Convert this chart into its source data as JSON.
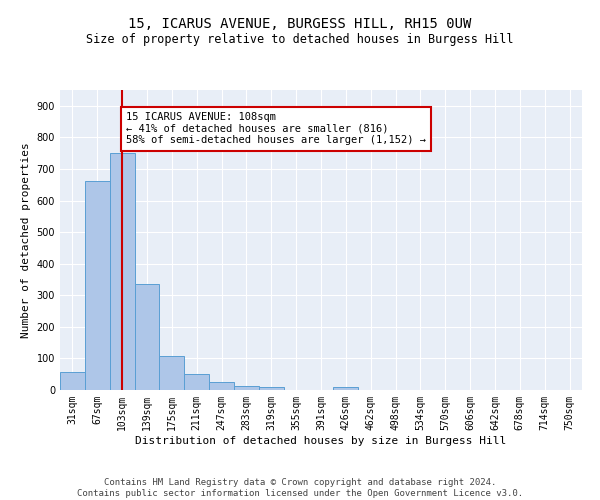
{
  "title": "15, ICARUS AVENUE, BURGESS HILL, RH15 0UW",
  "subtitle": "Size of property relative to detached houses in Burgess Hill",
  "xlabel": "Distribution of detached houses by size in Burgess Hill",
  "ylabel": "Number of detached properties",
  "bin_labels": [
    "31sqm",
    "67sqm",
    "103sqm",
    "139sqm",
    "175sqm",
    "211sqm",
    "247sqm",
    "283sqm",
    "319sqm",
    "355sqm",
    "391sqm",
    "426sqm",
    "462sqm",
    "498sqm",
    "534sqm",
    "570sqm",
    "606sqm",
    "642sqm",
    "678sqm",
    "714sqm",
    "750sqm"
  ],
  "bar_heights": [
    57,
    663,
    750,
    335,
    108,
    52,
    25,
    14,
    9,
    0,
    0,
    9,
    0,
    0,
    0,
    0,
    0,
    0,
    0,
    0,
    0
  ],
  "bar_color": "#aec6e8",
  "bar_edge_color": "#5a9fd4",
  "property_line_x": 2,
  "property_line_color": "#cc0000",
  "ylim": [
    0,
    950
  ],
  "yticks": [
    0,
    100,
    200,
    300,
    400,
    500,
    600,
    700,
    800,
    900
  ],
  "annotation_text": "15 ICARUS AVENUE: 108sqm\n← 41% of detached houses are smaller (816)\n58% of semi-detached houses are larger (1,152) →",
  "annotation_box_color": "#ffffff",
  "annotation_box_edge": "#cc0000",
  "footer_line1": "Contains HM Land Registry data © Crown copyright and database right 2024.",
  "footer_line2": "Contains public sector information licensed under the Open Government Licence v3.0.",
  "background_color": "#e8eef7",
  "grid_color": "#ffffff",
  "title_fontsize": 10,
  "subtitle_fontsize": 8.5,
  "xlabel_fontsize": 8,
  "ylabel_fontsize": 8,
  "tick_fontsize": 7,
  "footer_fontsize": 6.5,
  "ann_fontsize": 7.5
}
